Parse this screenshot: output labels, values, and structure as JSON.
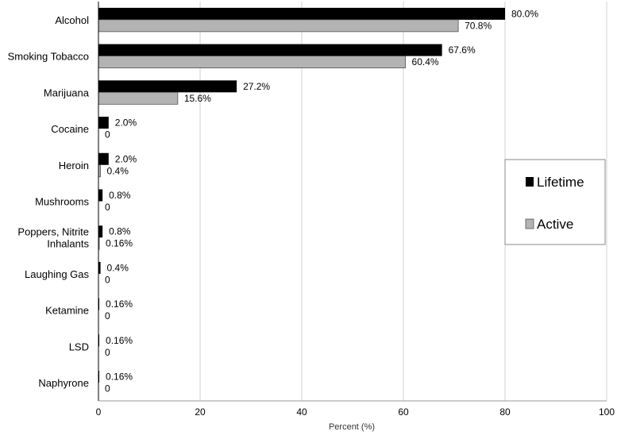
{
  "chart_data": {
    "type": "bar",
    "orientation": "horizontal",
    "categories": [
      "Alcohol",
      "Smoking Tobacco",
      "Marijuana",
      "Cocaine",
      "Heroin",
      "Mushrooms",
      "Poppers, Nitrite Inhalants",
      "Laughing Gas",
      "Ketamine",
      "LSD",
      "Naphyrone"
    ],
    "category_display": [
      [
        "Alcohol"
      ],
      [
        "Smoking Tobacco"
      ],
      [
        "Marijuana"
      ],
      [
        "Cocaine"
      ],
      [
        "Heroin"
      ],
      [
        "Mushrooms"
      ],
      [
        "Poppers, Nitrite",
        "Inhalants"
      ],
      [
        "Laughing Gas"
      ],
      [
        "Ketamine"
      ],
      [
        "LSD"
      ],
      [
        "Naphyrone"
      ]
    ],
    "series": [
      {
        "name": "Lifetime",
        "color": "#000000",
        "values": [
          80.0,
          67.6,
          27.2,
          2.0,
          2.0,
          0.8,
          0.8,
          0.4,
          0.16,
          0.16,
          0.16
        ],
        "labels": [
          "80.0%",
          "67.6%",
          "27.2%",
          "2.0%",
          "2.0%",
          "0.8%",
          "0.8%",
          "0.4%",
          "0.16%",
          "0.16%",
          "0.16%"
        ]
      },
      {
        "name": "Active",
        "color": "#b3b3b3",
        "values": [
          70.8,
          60.4,
          15.6,
          0,
          0.4,
          0,
          0.16,
          0,
          0,
          0,
          0
        ],
        "labels": [
          "70.8%",
          "60.4%",
          "15.6%",
          "0",
          "0.4%",
          "0",
          "0.16%",
          "0",
          "0",
          "0",
          "0"
        ]
      }
    ],
    "xlabel": "Percent (%)",
    "xlim": [
      0,
      100
    ],
    "xticks": [
      0,
      20,
      40,
      60,
      80,
      100
    ],
    "grid": "vertical",
    "legend_position": "right"
  }
}
